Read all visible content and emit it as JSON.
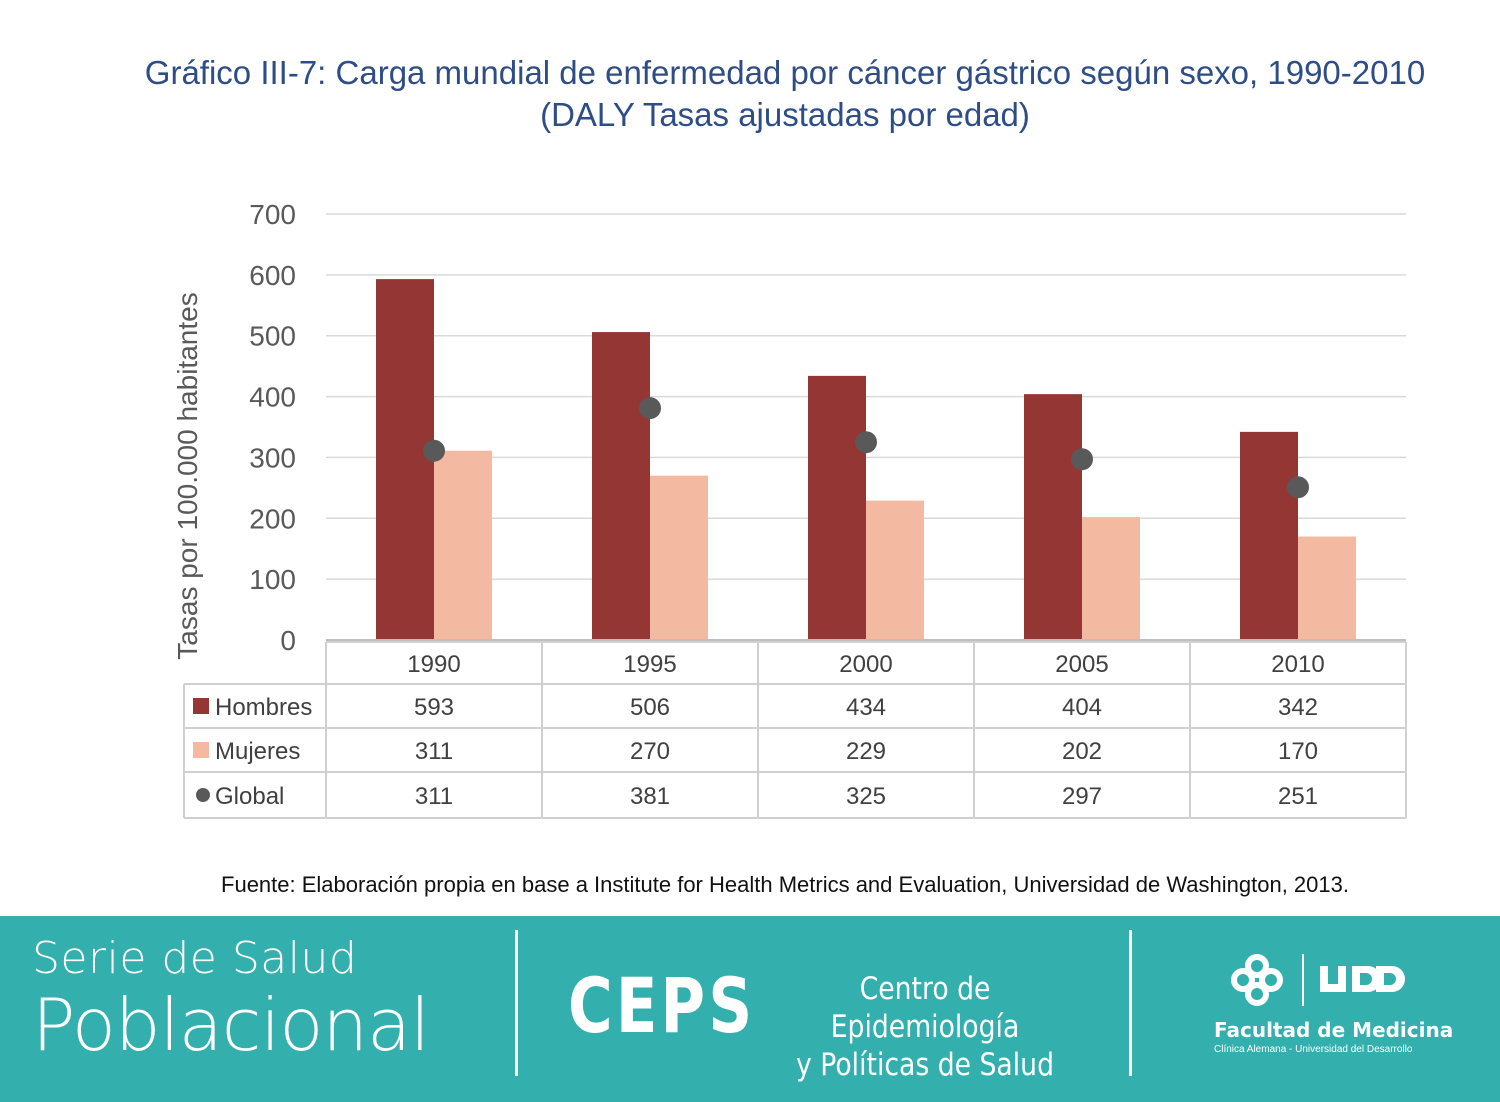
{
  "title_line1": "Gráfico III-7:  Carga mundial de enfermedad por cáncer gástrico según sexo, 1990-2010",
  "title_line2": "(DALY Tasas ajustadas por edad)",
  "chart_data": {
    "type": "bar",
    "categories": [
      "1990",
      "1995",
      "2000",
      "2005",
      "2010"
    ],
    "series": [
      {
        "name": "Hombres",
        "type": "bar",
        "color": "#943634",
        "values": [
          593,
          506,
          434,
          404,
          342
        ]
      },
      {
        "name": "Mujeres",
        "type": "bar",
        "color": "#f4b9a1",
        "values": [
          311,
          270,
          229,
          202,
          170
        ]
      },
      {
        "name": "Global",
        "type": "scatter",
        "color": "#595959",
        "values": [
          311,
          381,
          325,
          297,
          251
        ]
      }
    ],
    "ylabel": "Tasas por 100.000 habitantes",
    "ylim": [
      0,
      700
    ],
    "yticks": [
      0,
      100,
      200,
      300,
      400,
      500,
      600,
      700
    ],
    "grid": true,
    "legend": "data-table"
  },
  "source": "Fuente: Elaboración propia en base a Institute for Health Metrics and Evaluation, Universidad de Washington, 2013.",
  "footer": {
    "serie_line1": "Serie de Salud",
    "serie_line2": "Poblacional",
    "ceps": "CEPS",
    "ceps_line1": "Centro de Epidemiología",
    "ceps_line2": "y Políticas de Salud",
    "udd": "UDD",
    "facultad": "Facultad de Medicina",
    "facultad_sub": "Clínica Alemana - Universidad del Desarrollo"
  },
  "colors": {
    "title": "#2e4d86",
    "footer_bg": "#33b0ad",
    "axis_text": "#595959"
  }
}
